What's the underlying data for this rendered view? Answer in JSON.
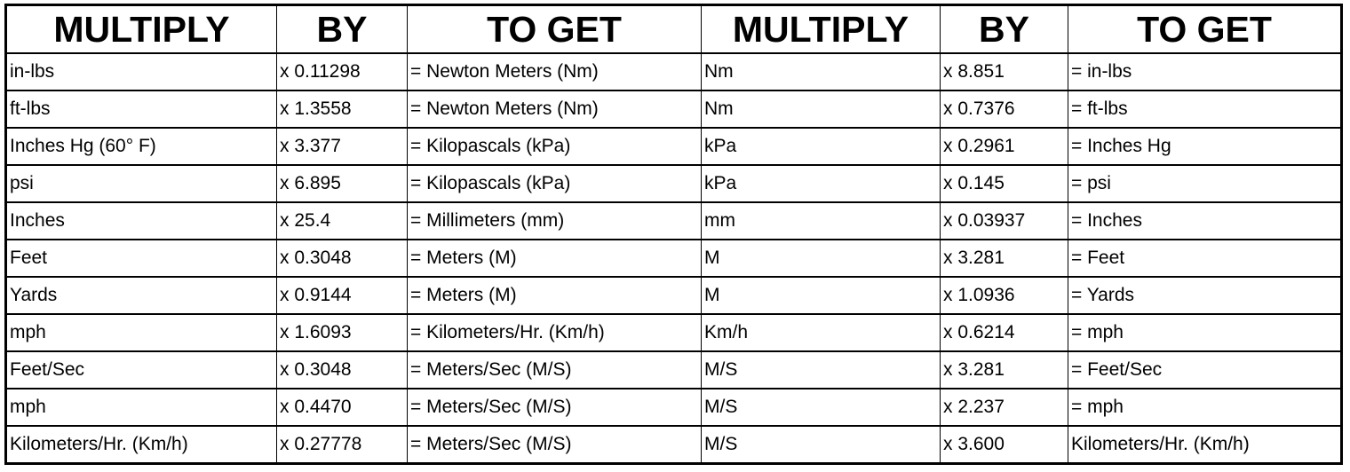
{
  "headers": [
    "MULTIPLY",
    "BY",
    "TO GET",
    "MULTIPLY",
    "BY",
    "TO GET"
  ],
  "rows": [
    [
      "in-lbs",
      "x 0.11298",
      "= Newton Meters (Nm)",
      "Nm",
      "x 8.851",
      "= in-lbs"
    ],
    [
      "ft-lbs",
      "x 1.3558",
      "= Newton Meters (Nm)",
      "Nm",
      "x 0.7376",
      "= ft-lbs"
    ],
    [
      "Inches Hg (60° F)",
      "x 3.377",
      "= Kilopascals (kPa)",
      "kPa",
      "x 0.2961",
      "= Inches Hg"
    ],
    [
      "psi",
      "x 6.895",
      "= Kilopascals (kPa)",
      "kPa",
      "x 0.145",
      "= psi"
    ],
    [
      "Inches",
      "x 25.4",
      "= Millimeters (mm)",
      "mm",
      "x 0.03937",
      "= Inches"
    ],
    [
      "Feet",
      "x 0.3048",
      "= Meters (M)",
      "M",
      "x 3.281",
      "= Feet"
    ],
    [
      "Yards",
      "x 0.9144",
      "= Meters (M)",
      "M",
      "x 1.0936",
      "= Yards"
    ],
    [
      "mph",
      "x 1.6093",
      "= Kilometers/Hr. (Km/h)",
      "Km/h",
      "x 0.6214",
      "= mph"
    ],
    [
      "Feet/Sec",
      "x 0.3048",
      "= Meters/Sec (M/S)",
      "M/S",
      "x 3.281",
      "= Feet/Sec"
    ],
    [
      "mph",
      "x 0.4470",
      "= Meters/Sec (M/S)",
      "M/S",
      "x 2.237",
      "= mph"
    ],
    [
      "Kilometers/Hr. (Km/h)",
      "x 0.27778",
      "= Meters/Sec (M/S)",
      "M/S",
      "x 3.600",
      "Kilometers/Hr. (Km/h)"
    ]
  ]
}
